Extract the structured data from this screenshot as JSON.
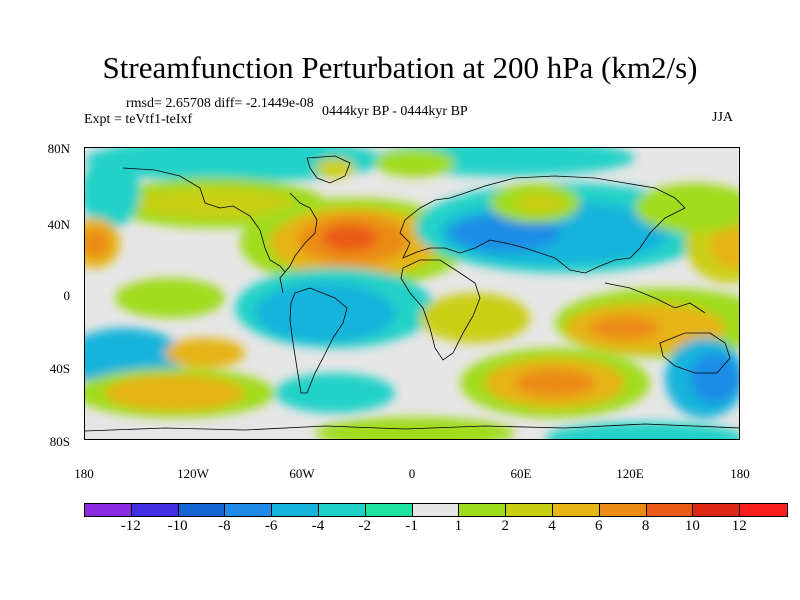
{
  "title": "Streamfunction Perturbation at 200 hPa (km2/s)",
  "stats": "rmsd= 2.65708  diff= -2.1449e-08",
  "experiment": "Expt = teVtf1-teIxf",
  "period": "0444kyr BP - 0444kyr BP",
  "season": "JJA",
  "lat_labels": [
    "80N",
    "40N",
    "0",
    "40S",
    "80S"
  ],
  "lon_labels": [
    "180",
    "120W",
    "60W",
    "0",
    "60E",
    "120E",
    "180"
  ],
  "colorbar": {
    "labels": [
      "-12",
      "-10",
      "-8",
      "-6",
      "-4",
      "-2",
      "-1",
      "1",
      "2",
      "4",
      "6",
      "8",
      "10",
      "12"
    ],
    "colors": [
      "#8a2be2",
      "#3f2fe0",
      "#1464d2",
      "#1e8ce6",
      "#16b4dc",
      "#20d2c8",
      "#1ee3a0",
      "#e6e6e6",
      "#a0dc1e",
      "#cbcf14",
      "#e6b414",
      "#eb8c14",
      "#eb5a14",
      "#dc2814",
      "#fa1e1e"
    ]
  },
  "map_data": {
    "projection": "cylindrical-equidistant",
    "lon_range": [
      -180,
      180
    ],
    "lat_range": [
      -90,
      90
    ],
    "field": "streamfunction perturbation",
    "level": "200 hPa",
    "units": "km2/s"
  }
}
